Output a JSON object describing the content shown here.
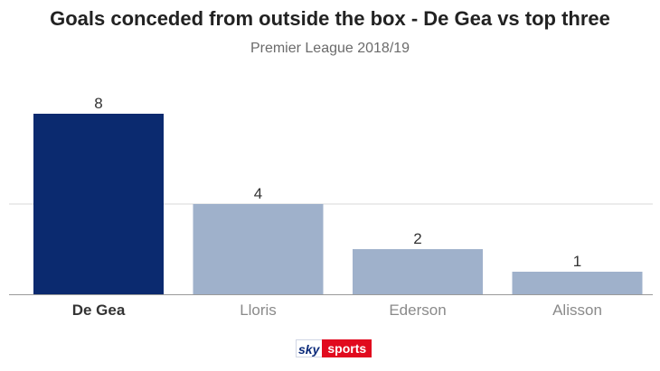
{
  "chart_data": {
    "type": "bar",
    "title": "Goals conceded from outside the box - De Gea vs top three",
    "subtitle": "Premier League 2018/19",
    "categories": [
      "De Gea",
      "Lloris",
      "Ederson",
      "Alisson"
    ],
    "values": [
      8,
      4,
      2,
      1
    ],
    "data_labels": [
      "8",
      "4",
      "2",
      "1"
    ],
    "ylim": [
      0,
      8
    ],
    "grid": true,
    "highlight_category": "De Gea",
    "colors": {
      "highlight": "#0b2a6f",
      "default": "#9fb1cb",
      "grid": "#d9d9d9",
      "axis": "#9a9a9a",
      "label_highlight": "#333333",
      "label_default": "#8a8a8a",
      "value_label": "#333333"
    }
  },
  "branding": {
    "logo_sky": "sky",
    "logo_sports": "sports"
  }
}
